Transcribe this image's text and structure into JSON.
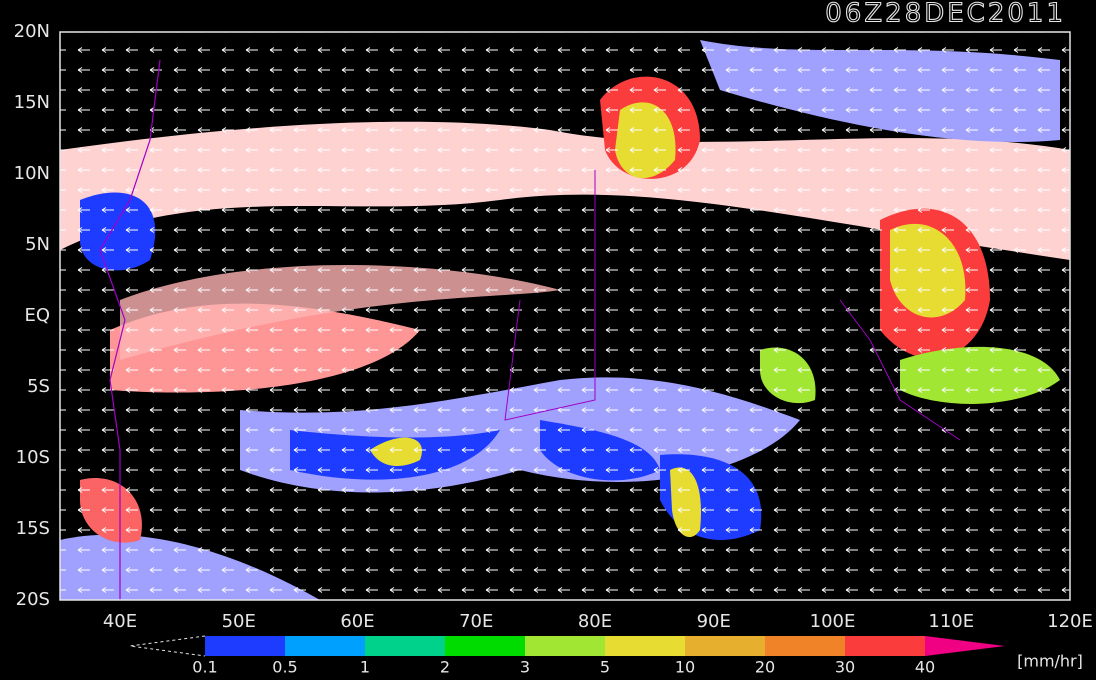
{
  "map": {
    "title": "06Z28DEC2011",
    "lat_labels": [
      "20N",
      "15N",
      "10N",
      "5N",
      "EQ",
      "5S",
      "10S",
      "15S",
      "20S"
    ],
    "lon_labels": [
      "40E",
      "50E",
      "60E",
      "70E",
      "80E",
      "90E",
      "100E",
      "110E",
      "120E"
    ],
    "colorbar": {
      "labels": [
        0.1,
        0.5,
        1,
        2,
        3,
        5,
        10,
        20,
        30,
        40
      ],
      "colors": [
        "#1e3cff",
        "#00a0ff",
        "#00d28c",
        "#00dc00",
        "#a0e632",
        "#e6dc32",
        "#e6af2d",
        "#f08228",
        "#fa3c3c",
        "#f00082"
      ],
      "unit": "[mm/hr]"
    }
  }
}
